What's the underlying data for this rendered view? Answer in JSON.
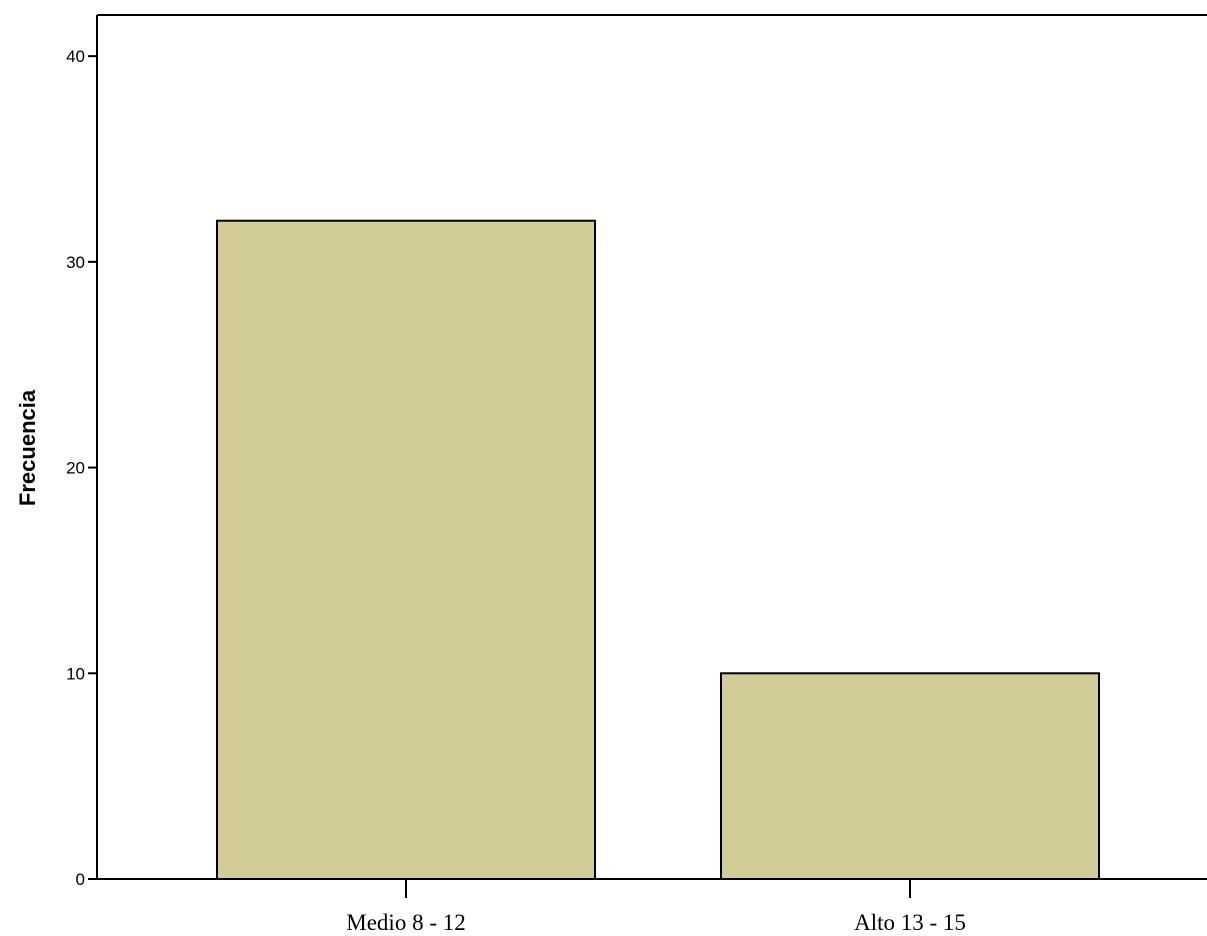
{
  "chart_data": {
    "type": "bar",
    "categories": [
      "Medio 8 - 12",
      "Alto 13 - 15"
    ],
    "values": [
      32,
      10
    ],
    "ylabel": "Frecuencia",
    "xlabel": "",
    "ylim": [
      0,
      42
    ],
    "yticks": [
      0,
      10,
      20,
      30,
      40
    ],
    "grid": false,
    "colors": {
      "bar_fill": "#D2CC98",
      "bar_stroke": "#000000",
      "axis": "#000000",
      "background": "#FFFFFF"
    }
  }
}
